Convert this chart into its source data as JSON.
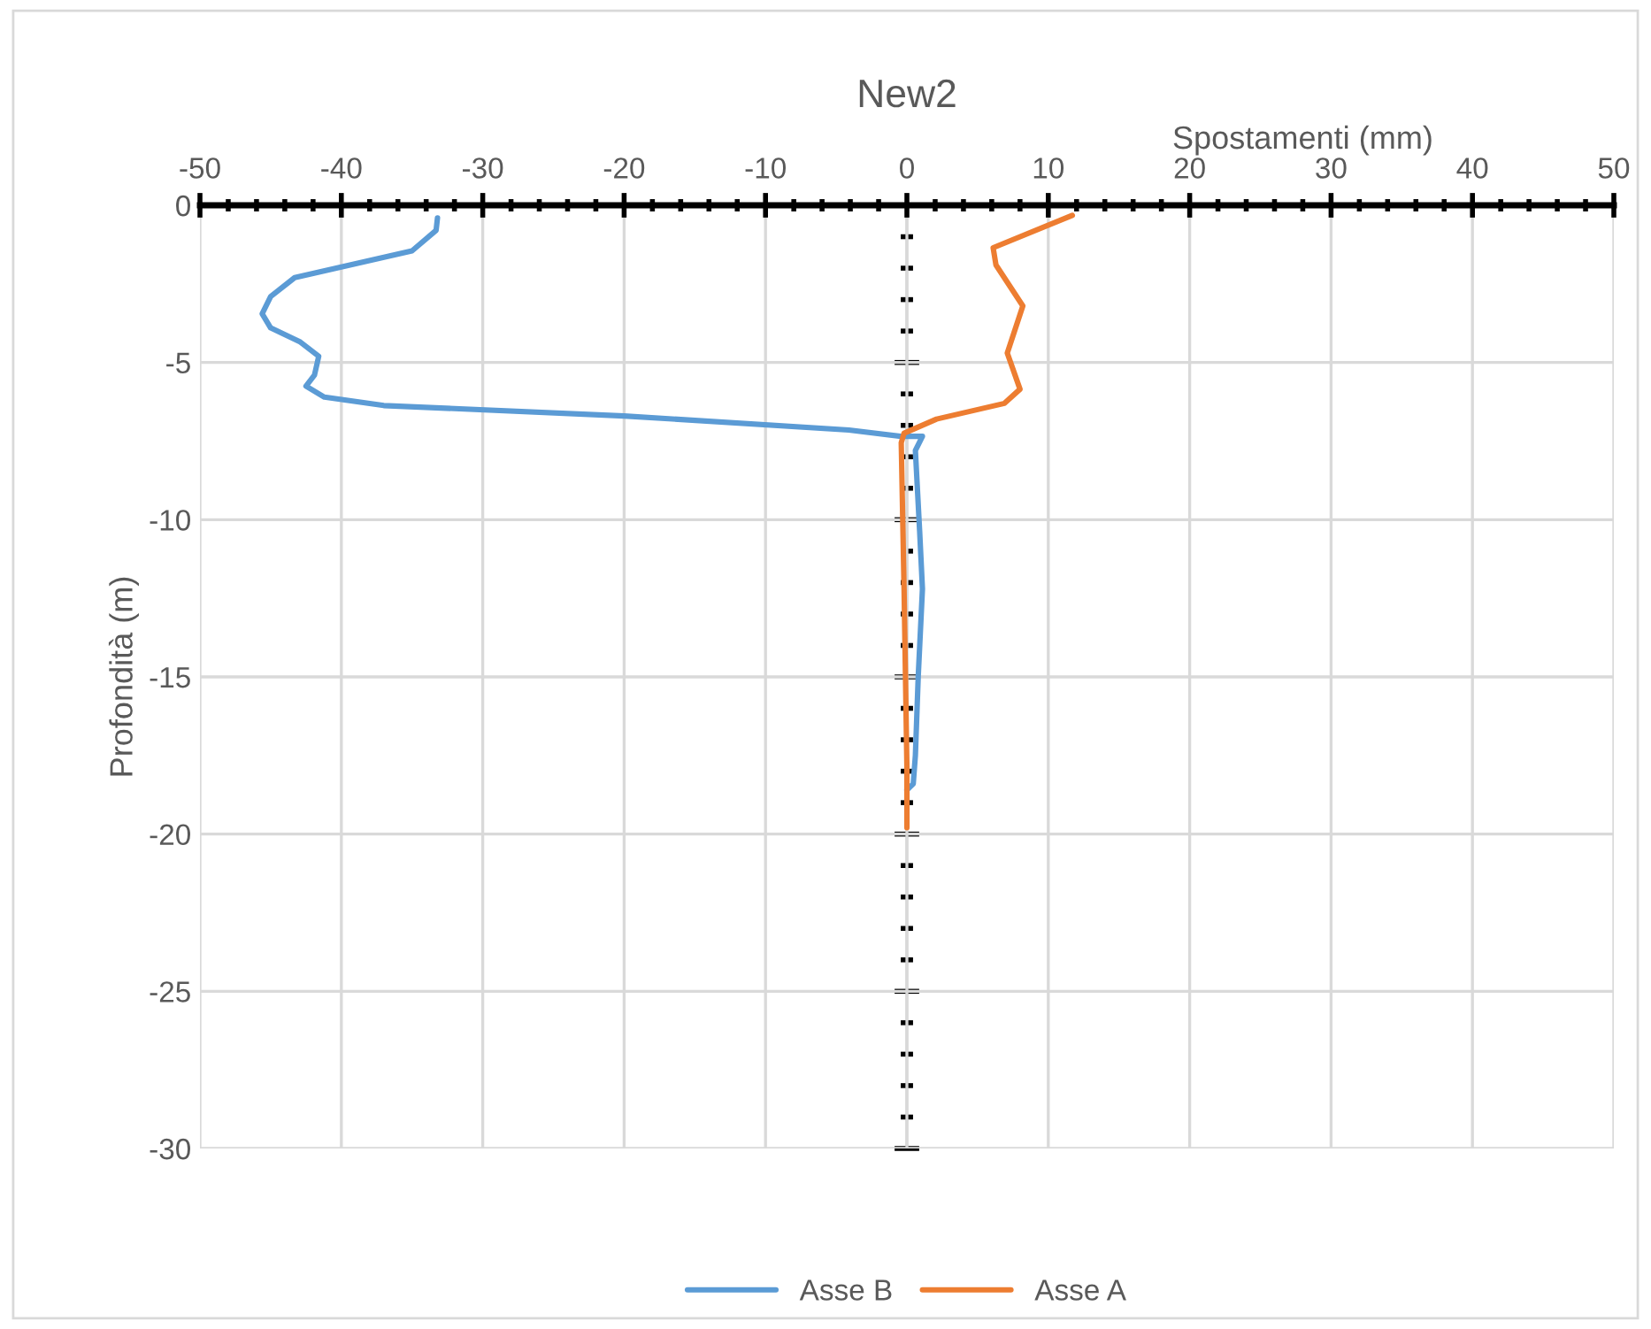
{
  "chart_data": {
    "type": "line",
    "title": "New2",
    "xlabel": "Spostamenti (mm)",
    "ylabel": "Profondità (m)",
    "xlim": [
      -50,
      50
    ],
    "xticks": [
      -50,
      -40,
      -30,
      -20,
      -10,
      0,
      10,
      20,
      30,
      40,
      50
    ],
    "ylim": [
      -30,
      0
    ],
    "yticks": [
      -30,
      -25,
      -20,
      -15,
      -10,
      -5,
      0
    ],
    "grid": true,
    "legend": "bottom",
    "marker": "none",
    "line_style": "solid",
    "series": [
      {
        "name": "Asse B",
        "color": "#5b9bd5",
        "x": [
          -33.2,
          -33.3,
          -35,
          -43.3,
          -45,
          -45.6,
          -45,
          -42.9,
          -41.6,
          -41.9,
          -42.5,
          -41.2,
          -37,
          -20,
          -4.1,
          -0.4,
          1.1,
          0.6,
          0.9,
          1.1,
          0.8,
          0.6,
          0.45,
          0
        ],
        "values": [
          -0.4,
          -0.8,
          -1.45,
          -2.3,
          -2.9,
          -3.45,
          -3.9,
          -4.35,
          -4.8,
          -5.4,
          -5.75,
          -6.1,
          -6.37,
          -6.7,
          -7.15,
          -7.35,
          -7.35,
          -7.8,
          -10.35,
          -12.2,
          -15,
          -17.5,
          -18.4,
          -18.6
        ]
      },
      {
        "name": "Asse A",
        "color": "#ed7d31",
        "x": [
          11.7,
          6.1,
          6.3,
          8.2,
          7.1,
          8,
          6.9,
          2.1,
          -0.2,
          -0.4,
          -0.2,
          0,
          0
        ],
        "values": [
          -0.32,
          -1.35,
          -1.9,
          -3.2,
          -4.7,
          -5.85,
          -6.3,
          -6.8,
          -7.25,
          -7.55,
          -12.2,
          -17.85,
          -19.8
        ]
      }
    ]
  }
}
